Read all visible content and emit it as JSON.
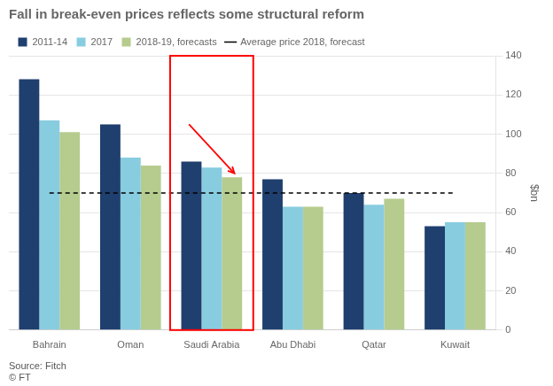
{
  "chart_data": {
    "type": "bar",
    "title": "Fall in break-even prices reflects some structural reform",
    "ylabel": "$bn",
    "categories": [
      "Bahrain",
      "Oman",
      "Saudi Arabia",
      "Abu Dhabi",
      "Qatar",
      "Kuwait"
    ],
    "series": [
      {
        "name": "2011-14",
        "color": "#1f3f6e",
        "values": [
          128,
          105,
          86,
          77,
          70,
          53
        ]
      },
      {
        "name": "2017",
        "color": "#88cce0",
        "values": [
          107,
          88,
          83,
          63,
          64,
          55
        ]
      },
      {
        "name": "2018-19, forecasts",
        "color": "#b5cc8e",
        "values": [
          101,
          84,
          78,
          63,
          67,
          55
        ]
      },
      {
        "name": "Average price 2018, forecast",
        "type": "line",
        "color": "black",
        "line_style": "dashed",
        "values": [
          70,
          70,
          70,
          70,
          70,
          70
        ]
      }
    ],
    "ylim": [
      0,
      140
    ],
    "yticks": [
      0,
      20,
      40,
      60,
      80,
      100,
      120,
      140
    ],
    "grid": true,
    "legend": "upper left",
    "source": "Source: Fitch\n© FT"
  }
}
